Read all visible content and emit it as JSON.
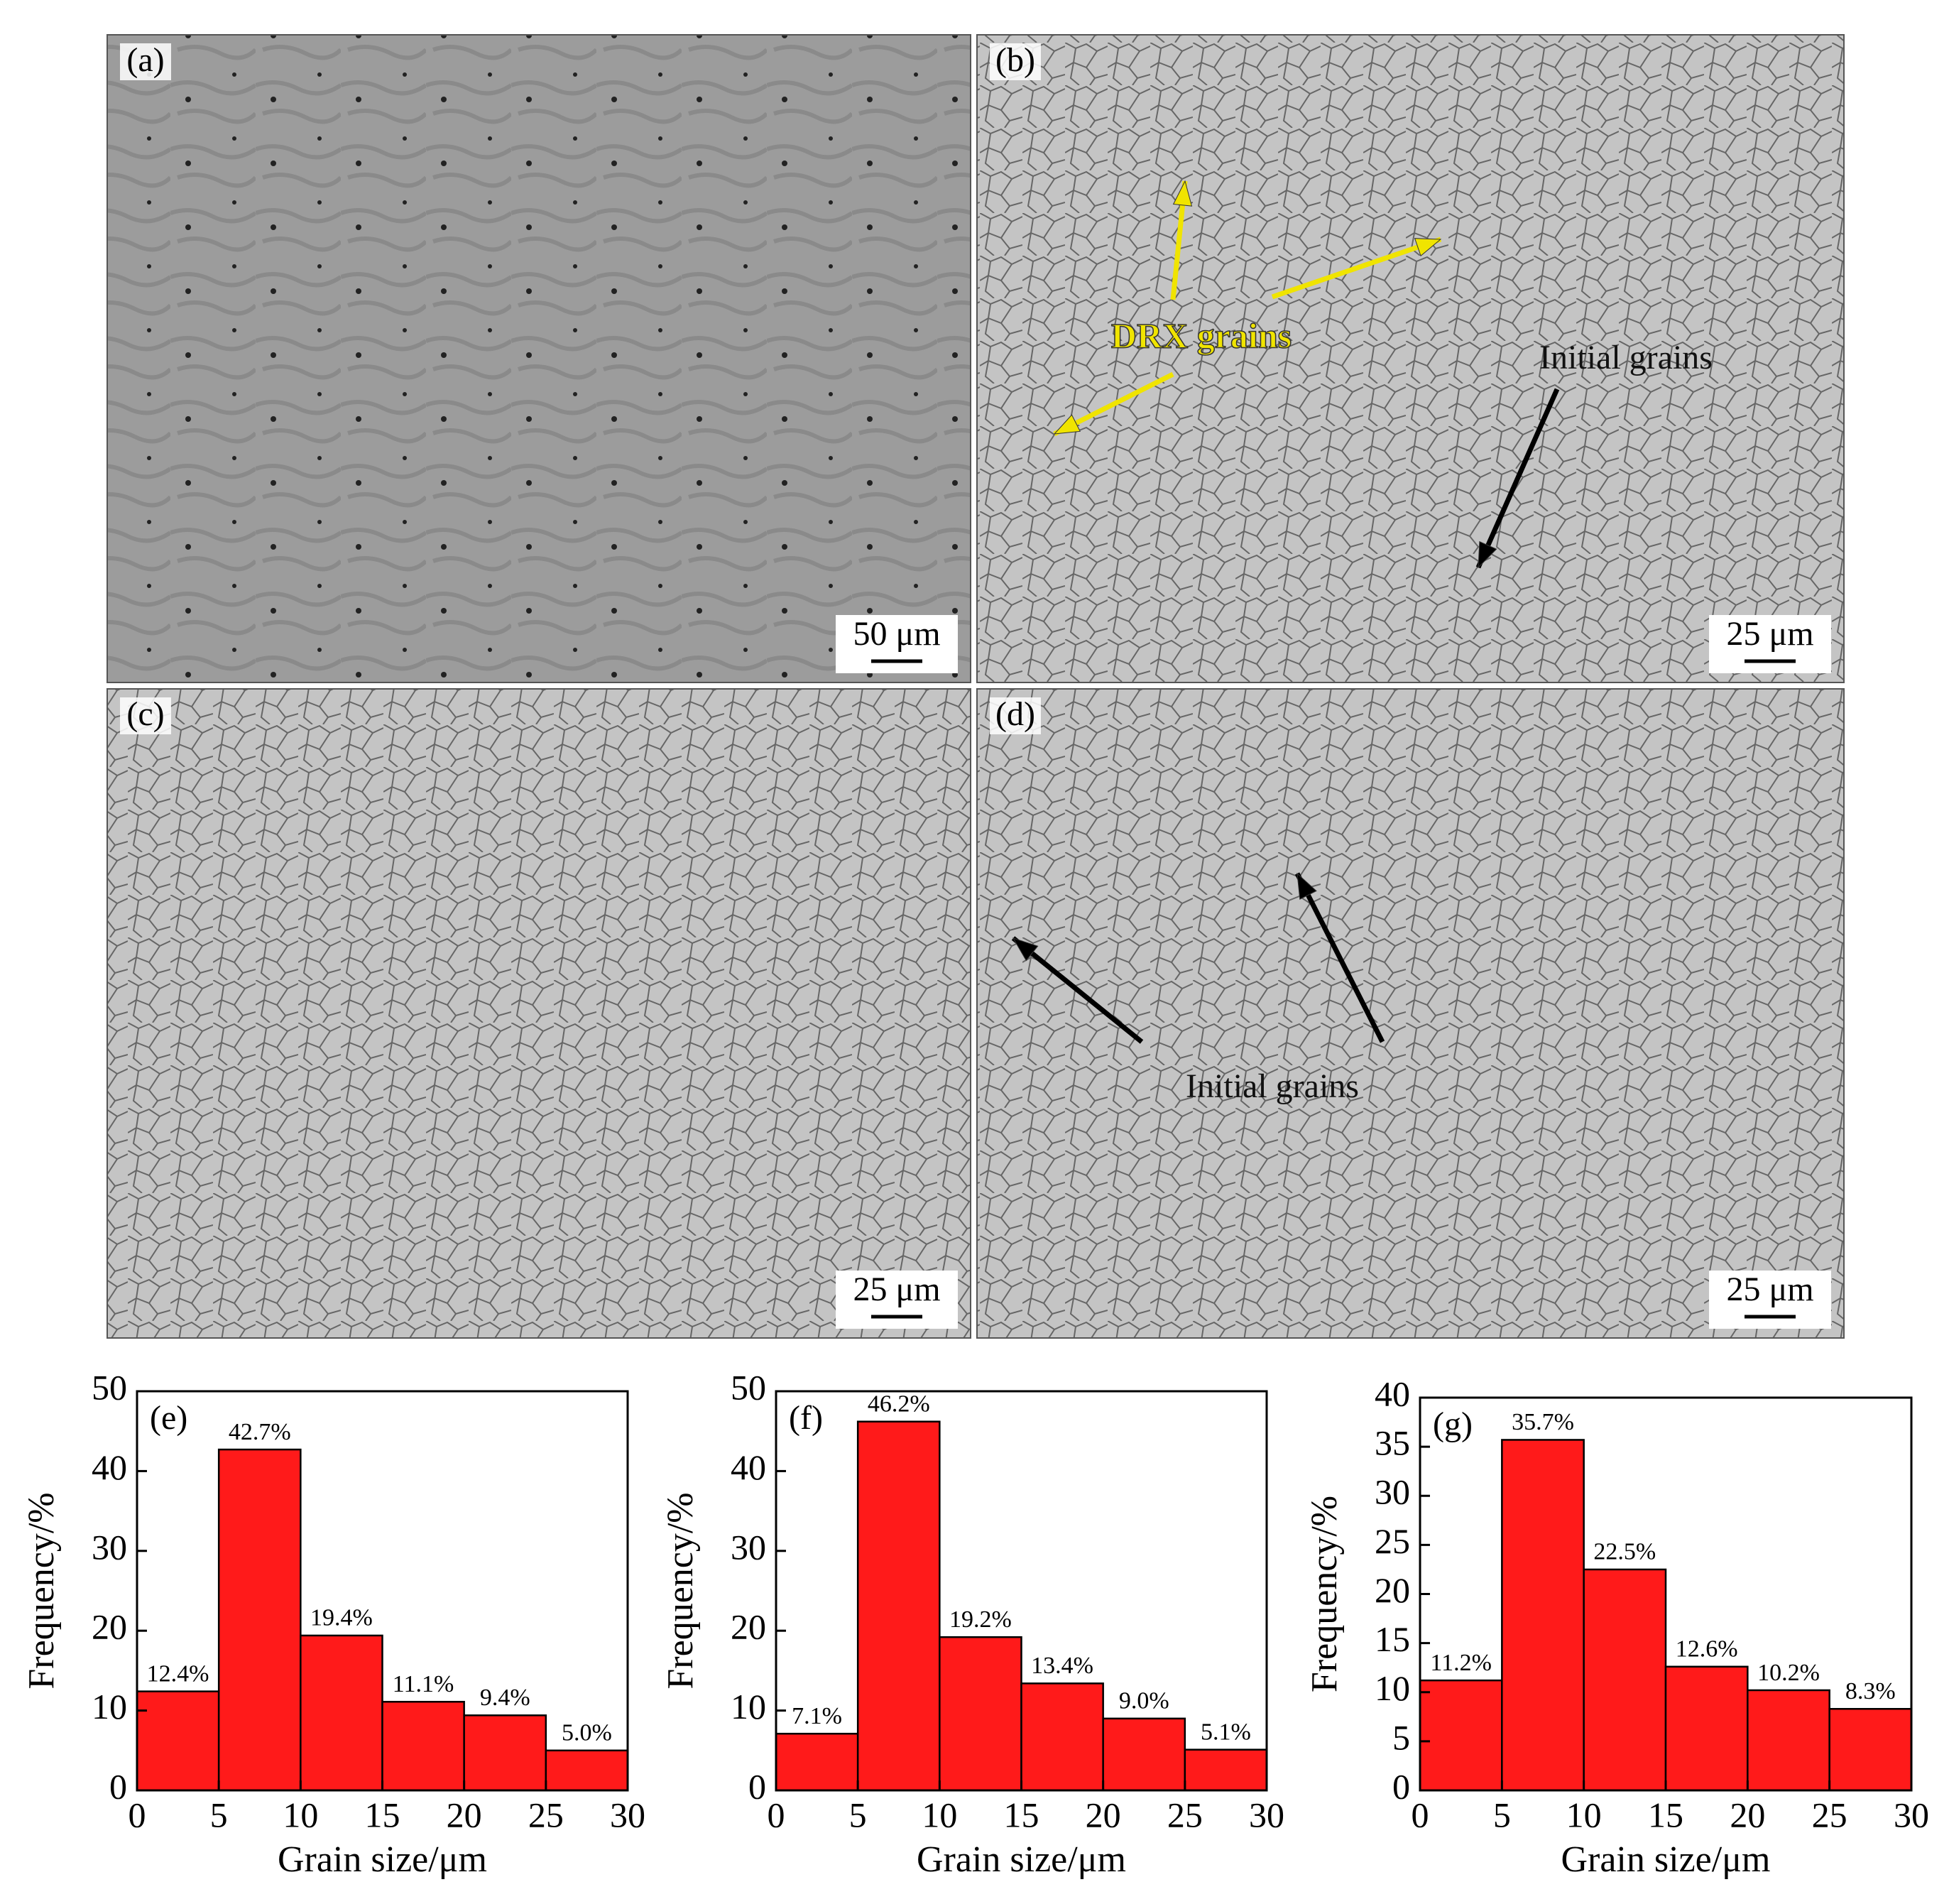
{
  "micrographs": [
    {
      "label": "(a)",
      "scale_bar": "50 μm"
    },
    {
      "label": "(b)",
      "scale_bar": "25 μm",
      "annotations": [
        "DRX grains",
        "Initial grains"
      ]
    },
    {
      "label": "(c)",
      "scale_bar": "25 μm"
    },
    {
      "label": "(d)",
      "scale_bar": "25 μm",
      "annotations": [
        "Initial grains"
      ]
    }
  ],
  "chart_data": [
    {
      "type": "histogram",
      "panel_label": "(e)",
      "xlabel": "Grain size/μm",
      "ylabel": "Frequency/%",
      "color": "#ff1a1a",
      "bins": [
        0,
        5,
        10,
        15,
        20,
        25,
        30
      ],
      "values": [
        12.4,
        42.7,
        19.4,
        11.1,
        9.4,
        5.0
      ],
      "value_labels": [
        "12.4%",
        "42.7%",
        "19.4%",
        "11.1%",
        "9.4%",
        "5.0%"
      ],
      "xlim": [
        0,
        30
      ],
      "xticks": [
        0,
        5,
        10,
        15,
        20,
        25,
        30
      ],
      "ylim": [
        0,
        50
      ],
      "yticks": [
        0,
        10,
        20,
        30,
        40,
        50
      ]
    },
    {
      "type": "histogram",
      "panel_label": "(f)",
      "xlabel": "Grain size/μm",
      "ylabel": "Frequency/%",
      "color": "#ff1a1a",
      "bins": [
        0,
        5,
        10,
        15,
        20,
        25,
        30
      ],
      "values": [
        7.1,
        46.2,
        19.2,
        13.4,
        9.0,
        5.1
      ],
      "value_labels": [
        "7.1%",
        "46.2%",
        "19.2%",
        "13.4%",
        "9.0%",
        "5.1%"
      ],
      "xlim": [
        0,
        30
      ],
      "xticks": [
        0,
        5,
        10,
        15,
        20,
        25,
        30
      ],
      "ylim": [
        0,
        50
      ],
      "yticks": [
        0,
        10,
        20,
        30,
        40,
        50
      ]
    },
    {
      "type": "histogram",
      "panel_label": "(g)",
      "xlabel": "Grain size/μm",
      "ylabel": "Frequency/%",
      "color": "#ff1a1a",
      "bins": [
        0,
        5,
        10,
        15,
        20,
        25,
        30
      ],
      "values": [
        11.2,
        35.7,
        22.5,
        12.6,
        10.2,
        8.3
      ],
      "value_labels": [
        "11.2%",
        "35.7%",
        "22.5%",
        "12.6%",
        "10.2%",
        "8.3%"
      ],
      "xlim": [
        0,
        30
      ],
      "xticks": [
        0,
        5,
        10,
        15,
        20,
        25,
        30
      ],
      "ylim": [
        0,
        40
      ],
      "yticks": [
        0,
        5,
        10,
        15,
        20,
        25,
        30,
        35,
        40
      ]
    }
  ]
}
